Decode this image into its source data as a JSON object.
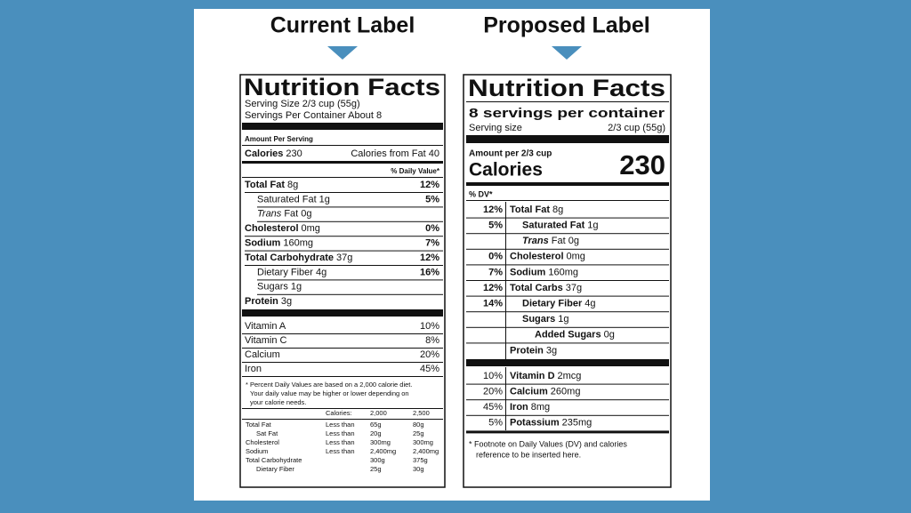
{
  "headings": {
    "current": "Current Label",
    "proposed": "Proposed Label"
  },
  "current": {
    "title": "Nutrition Facts",
    "serving_size": "Serving Size 2/3 cup (55g)",
    "servings": "Servings Per Container About 8",
    "amount_per_serving": "Amount Per Serving",
    "calories": {
      "label": "Calories",
      "value": "230",
      "from_fat": "Calories from Fat 40"
    },
    "dv_header": "% Daily Value*",
    "nutrients": [
      {
        "name": "Total Fat",
        "amount": "8g",
        "dv": "12%"
      },
      {
        "name": "Saturated Fat",
        "amount": "1g",
        "dv": "5%"
      },
      {
        "name": "Trans",
        "amount": "Fat 0g",
        "dv": null
      },
      {
        "name": "Cholesterol",
        "amount": "0mg",
        "dv": "0%"
      },
      {
        "name": "Sodium",
        "amount": "160mg",
        "dv": "7%"
      },
      {
        "name": "Total Carbohydrate",
        "amount": "37g",
        "dv": "12%"
      },
      {
        "name": "Dietary Fiber",
        "amount": "4g",
        "dv": "16%"
      },
      {
        "name": "Sugars",
        "amount": "1g",
        "dv": null
      },
      {
        "name": "Protein",
        "amount": "3g",
        "dv": null
      }
    ],
    "vitamins": [
      {
        "name": "Vitamin A",
        "dv": "10%"
      },
      {
        "name": "Vitamin C",
        "dv": "8%"
      },
      {
        "name": "Calcium",
        "dv": "20%"
      },
      {
        "name": "Iron",
        "dv": "45%"
      }
    ],
    "footnote": [
      "* Percent Daily Values are based on a 2,000 calorie diet.",
      "Your daily value may be higher or lower depending on",
      "your calorie needs."
    ],
    "table": {
      "header": [
        "Calories:",
        "2,000",
        "2,500"
      ],
      "rows": [
        [
          "Total Fat",
          "Less than",
          "65g",
          "80g"
        ],
        [
          "Sat Fat",
          "Less than",
          "20g",
          "25g"
        ],
        [
          "Cholesterol",
          "Less than",
          "300mg",
          "300mg"
        ],
        [
          "Sodium",
          "Less than",
          "2,400mg",
          "2,400mg"
        ],
        [
          "Total Carbohydrate",
          null,
          "300g",
          "375g"
        ],
        [
          "Dietary Fiber",
          null,
          "25g",
          "30g"
        ]
      ]
    }
  },
  "proposed": {
    "title": "Nutrition Facts",
    "servings": "8 servings per container",
    "serving_size": {
      "label": "Serving size",
      "value": "2/3 cup (55g)"
    },
    "amount": "Amount per 2/3 cup",
    "calories": {
      "label": "Calories",
      "value": "230"
    },
    "dv_header": "% DV*",
    "nutrients": [
      {
        "dv": "12%",
        "name": "Total Fat",
        "amount": "8g"
      },
      {
        "dv": "5%",
        "name": "Saturated Fat",
        "amount": "1g"
      },
      {
        "dv": null,
        "name": "Trans",
        "amount": "Fat 0g"
      },
      {
        "dv": "0%",
        "name": "Cholesterol",
        "amount": "0mg"
      },
      {
        "dv": "7%",
        "name": "Sodium",
        "amount": "160mg"
      },
      {
        "dv": "12%",
        "name": "Total Carbs",
        "amount": "37g"
      },
      {
        "dv": "14%",
        "name": "Dietary Fiber",
        "amount": "4g"
      },
      {
        "dv": null,
        "name": "Sugars",
        "amount": "1g"
      },
      {
        "dv": null,
        "name": "Added Sugars",
        "amount": "0g"
      },
      {
        "dv": null,
        "name": "Protein",
        "amount": "3g"
      }
    ],
    "minerals": [
      {
        "dv": "10%",
        "name": "Vitamin D",
        "amount": "2mcg"
      },
      {
        "dv": "20%",
        "name": "Calcium",
        "amount": "260mg"
      },
      {
        "dv": "45%",
        "name": "Iron",
        "amount": "8mg"
      },
      {
        "dv": "5%",
        "name": "Potassium",
        "amount": "235mg"
      }
    ],
    "footnote": [
      "* Footnote on Daily Values (DV) and calories",
      "reference to be inserted here."
    ]
  }
}
